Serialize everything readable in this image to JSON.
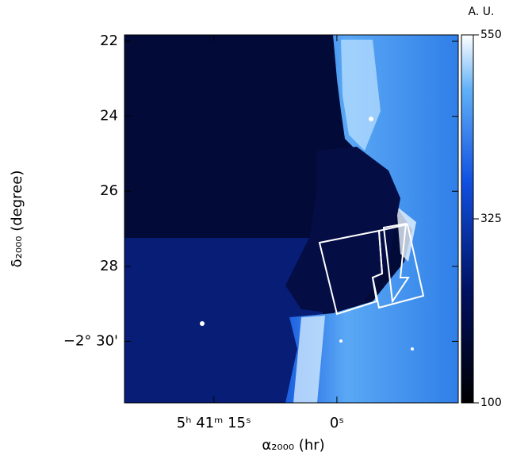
{
  "chart_data": {
    "type": "image",
    "xlabel": "α₂₀₀₀ (hr)",
    "ylabel": "δ₂₀₀₀ (degree)",
    "xlim": [
      25.9,
      -14.8
    ],
    "xticks": [
      {
        "value": 15,
        "label": "5ʰ 41ᵐ 15ˢ"
      },
      {
        "value": 0,
        "label": "0ˢ"
      }
    ],
    "ylim": [
      21.83,
      31.64
    ],
    "yticks": [
      22,
      24,
      26,
      28,
      {
        "value": 30,
        "label": "−2° 30'"
      }
    ],
    "colorbar": {
      "label": "A. U.",
      "clim": [
        100,
        550
      ],
      "ticks": [
        100,
        325,
        550
      ]
    }
  }
}
